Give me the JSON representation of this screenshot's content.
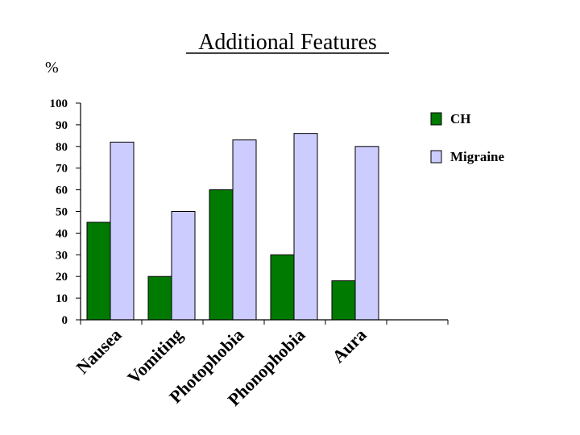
{
  "chart_data": {
    "type": "bar",
    "title": "Additional Features",
    "ylabel": "%",
    "xlabel": "",
    "categories": [
      "Nausea",
      "Vomiting",
      "Photophobia",
      "Phonophobia",
      "Aura",
      ""
    ],
    "series": [
      {
        "name": "CH",
        "values": [
          45,
          20,
          60,
          30,
          18,
          null
        ],
        "color": "#007a00"
      },
      {
        "name": "Migraine",
        "values": [
          82,
          50,
          83,
          86,
          80,
          null
        ],
        "color": "#ccccff"
      }
    ],
    "yticks": [
      0,
      10,
      20,
      30,
      40,
      50,
      60,
      70,
      80,
      90,
      100
    ],
    "ylim": [
      0,
      100
    ],
    "grid": false,
    "legend_position": "right"
  }
}
